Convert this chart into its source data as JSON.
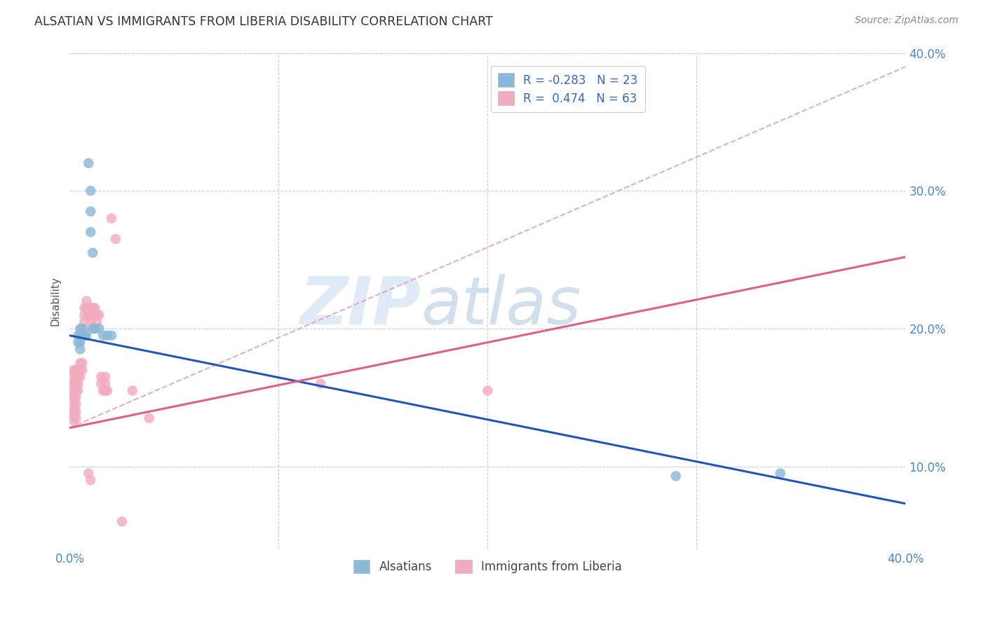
{
  "title": "ALSATIAN VS IMMIGRANTS FROM LIBERIA DISABILITY CORRELATION CHART",
  "source": "Source: ZipAtlas.com",
  "ylabel": "Disability",
  "xlim": [
    0.0,
    0.4
  ],
  "ylim": [
    0.04,
    0.4
  ],
  "background_color": "#ffffff",
  "grid_color": "#cccccc",
  "watermark_zip": "ZIP",
  "watermark_atlas": "atlas",
  "blue_scatter": [
    [
      0.004,
      0.195
    ],
    [
      0.004,
      0.19
    ],
    [
      0.005,
      0.2
    ],
    [
      0.005,
      0.195
    ],
    [
      0.005,
      0.19
    ],
    [
      0.005,
      0.185
    ],
    [
      0.006,
      0.2
    ],
    [
      0.006,
      0.195
    ],
    [
      0.007,
      0.195
    ],
    [
      0.008,
      0.195
    ],
    [
      0.009,
      0.32
    ],
    [
      0.01,
      0.3
    ],
    [
      0.01,
      0.285
    ],
    [
      0.01,
      0.27
    ],
    [
      0.011,
      0.255
    ],
    [
      0.011,
      0.2
    ],
    [
      0.012,
      0.2
    ],
    [
      0.014,
      0.2
    ],
    [
      0.016,
      0.195
    ],
    [
      0.018,
      0.195
    ],
    [
      0.02,
      0.195
    ],
    [
      0.29,
      0.093
    ],
    [
      0.34,
      0.095
    ]
  ],
  "pink_scatter": [
    [
      0.002,
      0.17
    ],
    [
      0.002,
      0.167
    ],
    [
      0.002,
      0.163
    ],
    [
      0.002,
      0.16
    ],
    [
      0.002,
      0.157
    ],
    [
      0.002,
      0.153
    ],
    [
      0.002,
      0.15
    ],
    [
      0.002,
      0.147
    ],
    [
      0.002,
      0.143
    ],
    [
      0.002,
      0.14
    ],
    [
      0.002,
      0.137
    ],
    [
      0.002,
      0.133
    ],
    [
      0.003,
      0.17
    ],
    [
      0.003,
      0.165
    ],
    [
      0.003,
      0.16
    ],
    [
      0.003,
      0.155
    ],
    [
      0.003,
      0.15
    ],
    [
      0.003,
      0.145
    ],
    [
      0.003,
      0.14
    ],
    [
      0.003,
      0.135
    ],
    [
      0.004,
      0.17
    ],
    [
      0.004,
      0.165
    ],
    [
      0.004,
      0.16
    ],
    [
      0.004,
      0.155
    ],
    [
      0.005,
      0.175
    ],
    [
      0.005,
      0.17
    ],
    [
      0.005,
      0.165
    ],
    [
      0.006,
      0.175
    ],
    [
      0.006,
      0.17
    ],
    [
      0.007,
      0.215
    ],
    [
      0.007,
      0.21
    ],
    [
      0.007,
      0.205
    ],
    [
      0.007,
      0.2
    ],
    [
      0.008,
      0.22
    ],
    [
      0.008,
      0.215
    ],
    [
      0.009,
      0.215
    ],
    [
      0.009,
      0.21
    ],
    [
      0.01,
      0.215
    ],
    [
      0.01,
      0.21
    ],
    [
      0.01,
      0.205
    ],
    [
      0.011,
      0.215
    ],
    [
      0.011,
      0.21
    ],
    [
      0.012,
      0.215
    ],
    [
      0.012,
      0.21
    ],
    [
      0.013,
      0.21
    ],
    [
      0.013,
      0.205
    ],
    [
      0.014,
      0.21
    ],
    [
      0.015,
      0.165
    ],
    [
      0.015,
      0.16
    ],
    [
      0.016,
      0.155
    ],
    [
      0.017,
      0.165
    ],
    [
      0.017,
      0.16
    ],
    [
      0.017,
      0.155
    ],
    [
      0.018,
      0.155
    ],
    [
      0.02,
      0.28
    ],
    [
      0.022,
      0.265
    ],
    [
      0.03,
      0.155
    ],
    [
      0.038,
      0.135
    ],
    [
      0.12,
      0.16
    ],
    [
      0.2,
      0.155
    ],
    [
      0.025,
      0.06
    ],
    [
      0.009,
      0.095
    ],
    [
      0.01,
      0.09
    ]
  ],
  "blue_line": {
    "x": [
      0.0,
      0.4
    ],
    "y": [
      0.195,
      0.073
    ]
  },
  "pink_solid_line": {
    "x": [
      0.0,
      0.4
    ],
    "y": [
      0.128,
      0.252
    ]
  },
  "pink_dashed_line": {
    "x": [
      0.0,
      0.4
    ],
    "y": [
      0.128,
      0.39
    ]
  },
  "blue_color": "#89B8D8",
  "pink_color": "#F2AABE",
  "blue_line_color": "#2255BB",
  "pink_line_color": "#E06080",
  "pink_dashed_color": "#E0A0B8",
  "legend_top": [
    {
      "label": "R = -0.283   N = 23",
      "color": "#89B8D8"
    },
    {
      "label": "R =  0.474   N = 63",
      "color": "#F2AABE"
    }
  ],
  "legend_bottom": [
    {
      "label": "Alsatians",
      "color": "#89B8D8"
    },
    {
      "label": "Immigrants from Liberia",
      "color": "#F2AABE"
    }
  ]
}
